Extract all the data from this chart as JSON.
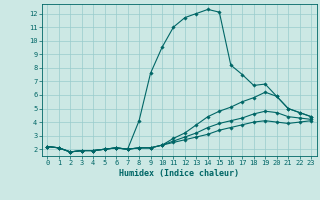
{
  "xlabel": "Humidex (Indice chaleur)",
  "background_color": "#cce8e4",
  "grid_color": "#99cccc",
  "line_color": "#006666",
  "xlim": [
    -0.5,
    23.5
  ],
  "ylim": [
    1.5,
    12.7
  ],
  "yticks": [
    2,
    3,
    4,
    5,
    6,
    7,
    8,
    9,
    10,
    11,
    12
  ],
  "xticks": [
    0,
    1,
    2,
    3,
    4,
    5,
    6,
    7,
    8,
    9,
    10,
    11,
    12,
    13,
    14,
    15,
    16,
    17,
    18,
    19,
    20,
    21,
    22,
    23
  ],
  "curves": [
    {
      "x": [
        0,
        1,
        2,
        3,
        4,
        5,
        6,
        7,
        8,
        9,
        10,
        11,
        12,
        13,
        14,
        15,
        16,
        17,
        18,
        19,
        20,
        21,
        22,
        23
      ],
      "y": [
        2.2,
        2.1,
        1.8,
        1.9,
        1.9,
        2.0,
        2.1,
        2.0,
        4.1,
        7.6,
        9.5,
        11.0,
        11.7,
        12.0,
        12.3,
        12.1,
        8.2,
        7.5,
        6.7,
        6.8,
        5.9,
        5.0,
        4.7,
        4.4
      ]
    },
    {
      "x": [
        0,
        1,
        2,
        3,
        4,
        5,
        6,
        7,
        8,
        9,
        10,
        11,
        12,
        13,
        14,
        15,
        16,
        17,
        18,
        19,
        20,
        21,
        22,
        23
      ],
      "y": [
        2.2,
        2.1,
        1.8,
        1.9,
        1.9,
        2.0,
        2.1,
        2.0,
        2.1,
        2.1,
        2.3,
        2.8,
        3.2,
        3.8,
        4.4,
        4.8,
        5.1,
        5.5,
        5.8,
        6.2,
        5.9,
        5.0,
        4.7,
        4.4
      ]
    },
    {
      "x": [
        0,
        1,
        2,
        3,
        4,
        5,
        6,
        7,
        8,
        9,
        10,
        11,
        12,
        13,
        14,
        15,
        16,
        17,
        18,
        19,
        20,
        21,
        22,
        23
      ],
      "y": [
        2.2,
        2.1,
        1.8,
        1.9,
        1.9,
        2.0,
        2.1,
        2.0,
        2.1,
        2.1,
        2.3,
        2.6,
        2.9,
        3.2,
        3.6,
        3.9,
        4.1,
        4.3,
        4.6,
        4.8,
        4.7,
        4.4,
        4.3,
        4.2
      ]
    },
    {
      "x": [
        0,
        1,
        2,
        3,
        4,
        5,
        6,
        7,
        8,
        9,
        10,
        11,
        12,
        13,
        14,
        15,
        16,
        17,
        18,
        19,
        20,
        21,
        22,
        23
      ],
      "y": [
        2.2,
        2.1,
        1.8,
        1.9,
        1.9,
        2.0,
        2.1,
        2.0,
        2.1,
        2.1,
        2.3,
        2.5,
        2.7,
        2.9,
        3.1,
        3.4,
        3.6,
        3.8,
        4.0,
        4.1,
        4.0,
        3.9,
        4.0,
        4.1
      ]
    }
  ]
}
